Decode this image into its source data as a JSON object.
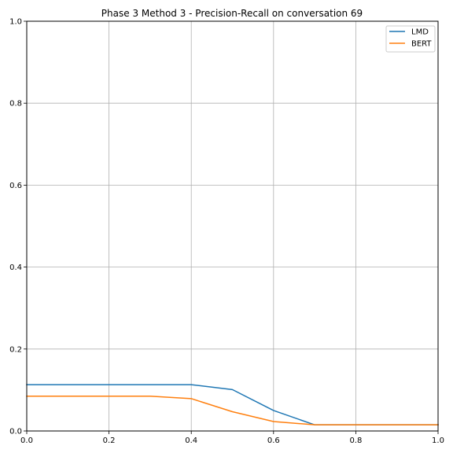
{
  "chart_data": {
    "type": "line",
    "title": "Phase 3 Method 3 - Precision-Recall on conversation 69",
    "xlabel": "",
    "ylabel": "",
    "xlim": [
      0.0,
      1.0
    ],
    "ylim": [
      0.0,
      1.0
    ],
    "grid": true,
    "legend_position": "top-right",
    "x_ticks": [
      "0.0",
      "0.2",
      "0.4",
      "0.6",
      "0.8",
      "1.0"
    ],
    "y_ticks": [
      "0.0",
      "0.2",
      "0.4",
      "0.6",
      "0.8",
      "1.0"
    ],
    "series": [
      {
        "name": "LMD",
        "color": "#1f77b4",
        "x": [
          0.0,
          0.1,
          0.2,
          0.3,
          0.4,
          0.5,
          0.6,
          0.7,
          0.8,
          0.9,
          1.0
        ],
        "y": [
          0.113,
          0.113,
          0.113,
          0.113,
          0.113,
          0.101,
          0.05,
          0.015,
          0.015,
          0.015,
          0.015
        ]
      },
      {
        "name": "BERT",
        "color": "#ff7f0e",
        "x": [
          0.0,
          0.1,
          0.2,
          0.3,
          0.4,
          0.5,
          0.6,
          0.7,
          0.8,
          0.9,
          1.0
        ],
        "y": [
          0.085,
          0.085,
          0.085,
          0.085,
          0.079,
          0.047,
          0.023,
          0.015,
          0.015,
          0.015,
          0.015
        ]
      }
    ]
  }
}
